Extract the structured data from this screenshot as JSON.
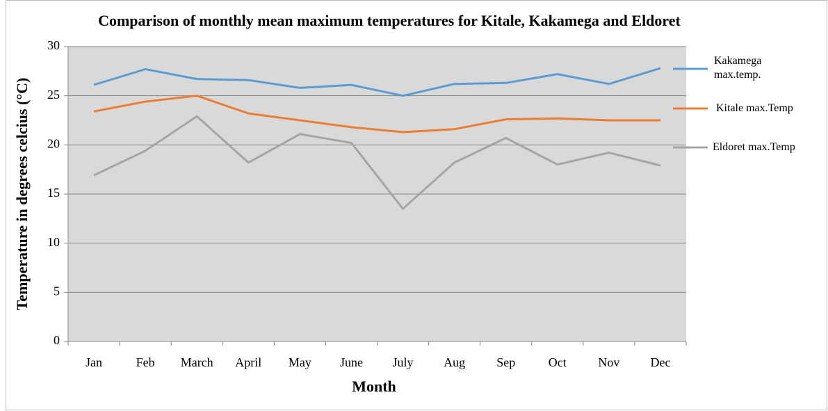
{
  "chart_data": {
    "type": "line",
    "title": "Comparison of monthly mean maximum temperatures for Kitale, Kakamega and Eldoret",
    "x_label": "Month",
    "y_label": "Temperature in degrees celcius (°C)",
    "categories": [
      "Jan",
      "Feb",
      "March",
      "April",
      "May",
      "June",
      "July",
      "Aug",
      "Sep",
      "Oct",
      "Nov",
      "Dec"
    ],
    "series": [
      {
        "name": "Kakamega max.temp.",
        "color": "#5b9bd5",
        "values": [
          26.1,
          27.7,
          26.7,
          26.6,
          25.8,
          26.1,
          25.0,
          26.2,
          26.3,
          27.2,
          26.2,
          27.8
        ]
      },
      {
        "name": "Kitale max.Temp",
        "color": "#ed7d31",
        "values": [
          23.4,
          24.4,
          25.0,
          23.2,
          22.5,
          21.8,
          21.3,
          21.6,
          22.6,
          22.7,
          22.5,
          22.5
        ]
      },
      {
        "name": "Eldoret max.Temp",
        "color": "#a5a5a5",
        "values": [
          16.9,
          19.4,
          22.9,
          18.2,
          21.1,
          20.2,
          13.5,
          18.2,
          20.7,
          18.0,
          19.2,
          17.9
        ]
      }
    ],
    "ylim": [
      0,
      30
    ],
    "yticks": [
      0,
      5,
      10,
      15,
      20,
      25,
      30
    ],
    "grid": true,
    "legend": "right"
  }
}
